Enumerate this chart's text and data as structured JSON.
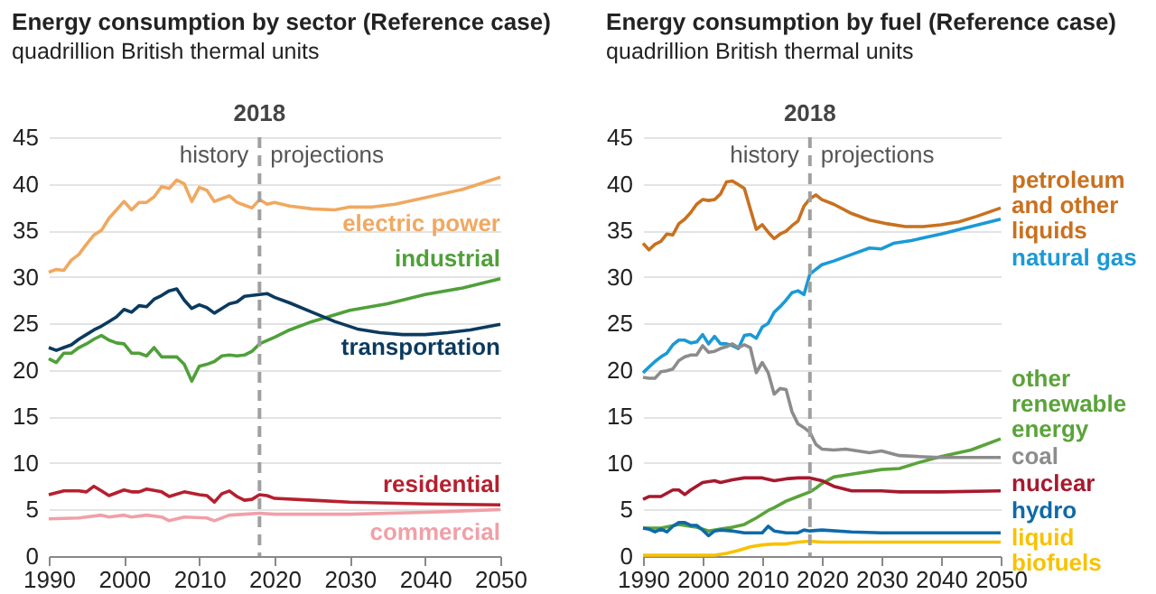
{
  "chart_data": [
    {
      "type": "line",
      "title": "Energy consumption by sector (Reference case)",
      "subtitle": "quadrillion British thermal units",
      "xlim": [
        1990,
        2050
      ],
      "xticks": [
        1990,
        2000,
        2010,
        2020,
        2030,
        2040,
        2050
      ],
      "ylim": [
        0,
        45
      ],
      "yticks": [
        0,
        5,
        10,
        15,
        20,
        25,
        30,
        35,
        40,
        45
      ],
      "grid": "y",
      "ref_lines": [
        {
          "axis": "x",
          "value": 2018,
          "label": "2018",
          "color": "#a0a0a0",
          "line_style": "dashed"
        }
      ],
      "annotations": [
        "history",
        "projections"
      ],
      "series": [
        {
          "name": "electric power",
          "color": "#f0a860",
          "x": [
            1990,
            1991,
            1992,
            1993,
            1994,
            1995,
            1996,
            1997,
            1998,
            1999,
            2000,
            2001,
            2002,
            2003,
            2004,
            2005,
            2006,
            2007,
            2008,
            2009,
            2010,
            2011,
            2012,
            2013,
            2014,
            2015,
            2016,
            2017,
            2018,
            2019,
            2020,
            2022,
            2025,
            2028,
            2030,
            2033,
            2036,
            2040,
            2045,
            2050
          ],
          "values": [
            30.5,
            30.8,
            30.7,
            31.8,
            32.4,
            33.5,
            34.5,
            35,
            36.3,
            37.2,
            38.1,
            37.2,
            38,
            38,
            38.6,
            39.7,
            39.5,
            40.4,
            40,
            38.1,
            39.6,
            39.3,
            38.1,
            38.4,
            38.7,
            38,
            37.7,
            37.4,
            38.3,
            37.8,
            38,
            37.6,
            37.3,
            37.2,
            37.5,
            37.5,
            37.8,
            38.5,
            39.4,
            40.7
          ]
        },
        {
          "name": "industrial",
          "color": "#4fa03a",
          "x": [
            1990,
            1991,
            1992,
            1993,
            1994,
            1995,
            1996,
            1997,
            1998,
            1999,
            2000,
            2001,
            2002,
            2003,
            2004,
            2005,
            2006,
            2007,
            2008,
            2009,
            2010,
            2011,
            2012,
            2013,
            2014,
            2015,
            2016,
            2017,
            2018,
            2020,
            2022,
            2025,
            2030,
            2035,
            2040,
            2045,
            2050
          ],
          "values": [
            21.2,
            20.8,
            21.8,
            21.8,
            22.4,
            22.8,
            23.3,
            23.7,
            23.2,
            22.9,
            22.8,
            21.8,
            21.8,
            21.5,
            22.4,
            21.4,
            21.4,
            21.4,
            20.6,
            18.8,
            20.4,
            20.6,
            20.9,
            21.5,
            21.6,
            21.5,
            21.6,
            22,
            22.8,
            23.5,
            24.3,
            25.2,
            26.4,
            27.1,
            28.1,
            28.8,
            29.8
          ]
        },
        {
          "name": "transportation",
          "color": "#0b3a5e",
          "x": [
            1990,
            1991,
            1992,
            1993,
            1994,
            1995,
            1996,
            1997,
            1998,
            1999,
            2000,
            2001,
            2002,
            2003,
            2004,
            2005,
            2006,
            2007,
            2008,
            2009,
            2010,
            2011,
            2012,
            2013,
            2014,
            2015,
            2016,
            2017,
            2018,
            2019,
            2020,
            2022,
            2025,
            2028,
            2031,
            2034,
            2037,
            2040,
            2043,
            2046,
            2050
          ],
          "values": [
            22.4,
            22.1,
            22.4,
            22.7,
            23.3,
            23.8,
            24.3,
            24.7,
            25.2,
            25.7,
            26.5,
            26.2,
            26.9,
            26.8,
            27.6,
            28,
            28.5,
            28.7,
            27.5,
            26.6,
            27,
            26.7,
            26.1,
            26.6,
            27.1,
            27.3,
            27.9,
            28,
            28.1,
            28.2,
            27.8,
            27.2,
            26.2,
            25.2,
            24.4,
            24,
            23.8,
            23.8,
            24,
            24.3,
            24.9
          ]
        },
        {
          "name": "residential",
          "color": "#b5202e",
          "x": [
            1990,
            1992,
            1994,
            1995,
            1996,
            1997,
            1998,
            2000,
            2001,
            2002,
            2003,
            2005,
            2006,
            2008,
            2010,
            2011,
            2012,
            2013,
            2014,
            2015,
            2016,
            2017,
            2018,
            2019,
            2020,
            2025,
            2030,
            2040,
            2050
          ],
          "values": [
            6.6,
            7,
            7,
            6.9,
            7.5,
            7,
            6.5,
            7.1,
            6.9,
            6.9,
            7.2,
            6.9,
            6.4,
            6.9,
            6.6,
            6.5,
            5.8,
            6.7,
            7,
            6.4,
            6,
            6.1,
            6.6,
            6.5,
            6.2,
            6,
            5.8,
            5.6,
            5.5
          ]
        },
        {
          "name": "commercial",
          "color": "#f0a0a8",
          "x": [
            1990,
            1994,
            1997,
            1998,
            2000,
            2001,
            2003,
            2005,
            2006,
            2008,
            2011,
            2012,
            2014,
            2016,
            2018,
            2020,
            2030,
            2040,
            2050
          ],
          "values": [
            4,
            4.1,
            4.4,
            4.2,
            4.4,
            4.2,
            4.4,
            4.2,
            3.8,
            4.2,
            4.1,
            3.8,
            4.4,
            4.5,
            4.6,
            4.5,
            4.5,
            4.7,
            5
          ]
        }
      ]
    },
    {
      "type": "line",
      "title": "Energy consumption by fuel (Reference case)",
      "subtitle": "quadrillion British thermal units",
      "xlim": [
        1990,
        2050
      ],
      "xticks": [
        1990,
        2000,
        2010,
        2020,
        2030,
        2040,
        2050
      ],
      "ylim": [
        0,
        45
      ],
      "yticks": [
        0,
        5,
        10,
        15,
        20,
        25,
        30,
        35,
        40,
        45
      ],
      "grid": "y",
      "ref_lines": [
        {
          "axis": "x",
          "value": 2018,
          "label": "2018",
          "color": "#a0a0a0",
          "line_style": "dashed"
        }
      ],
      "annotations": [
        "history",
        "projections"
      ],
      "series": [
        {
          "name": "petroleum and other liquids",
          "color": "#c8711f",
          "x": [
            1990,
            1991,
            1992,
            1993,
            1994,
            1995,
            1996,
            1997,
            1998,
            1999,
            2000,
            2001,
            2002,
            2003,
            2004,
            2005,
            2006,
            2007,
            2008,
            2009,
            2010,
            2011,
            2012,
            2013,
            2014,
            2015,
            2016,
            2017,
            2018,
            2019,
            2020,
            2022,
            2025,
            2028,
            2031,
            2034,
            2037,
            2040,
            2043,
            2046,
            2050
          ],
          "values": [
            33.6,
            32.9,
            33.5,
            33.8,
            34.6,
            34.5,
            35.7,
            36.2,
            36.9,
            37.8,
            38.3,
            38.2,
            38.3,
            38.9,
            40.2,
            40.3,
            39.9,
            39.5,
            37.3,
            35.1,
            35.6,
            34.8,
            34.1,
            34.6,
            34.9,
            35.5,
            36,
            37.6,
            38.4,
            38.8,
            38.3,
            37.8,
            36.8,
            36.1,
            35.7,
            35.4,
            35.4,
            35.6,
            35.9,
            36.5,
            37.4
          ]
        },
        {
          "name": "natural gas",
          "color": "#1a9ad6",
          "x": [
            1990,
            1991,
            1992,
            1993,
            1994,
            1995,
            1996,
            1997,
            1998,
            1999,
            2000,
            2001,
            2002,
            2003,
            2004,
            2005,
            2006,
            2007,
            2008,
            2009,
            2010,
            2011,
            2012,
            2013,
            2014,
            2015,
            2016,
            2017,
            2018,
            2019,
            2020,
            2022,
            2025,
            2028,
            2030,
            2032,
            2035,
            2040,
            2045,
            2050
          ],
          "values": [
            19.7,
            20.3,
            20.9,
            21.4,
            21.8,
            22.7,
            23.2,
            23.2,
            22.9,
            23,
            23.8,
            22.8,
            23.6,
            22.8,
            22.8,
            22.6,
            22.3,
            23.7,
            23.8,
            23.4,
            24.6,
            25,
            26.2,
            26.8,
            27.5,
            28.3,
            28.5,
            28.1,
            30.3,
            30.8,
            31.3,
            31.7,
            32.4,
            33.1,
            33,
            33.6,
            33.9,
            34.6,
            35.4,
            36.2
          ]
        },
        {
          "name": "other renewable energy",
          "color": "#5aa33a",
          "x": [
            1990,
            1993,
            1996,
            1999,
            2001,
            2003,
            2005,
            2007,
            2009,
            2011,
            2012,
            2014,
            2016,
            2018,
            2019,
            2020,
            2022,
            2025,
            2030,
            2033,
            2036,
            2040,
            2045,
            2050
          ],
          "values": [
            3,
            3,
            3.4,
            3.1,
            2.7,
            2.9,
            3.1,
            3.4,
            4.1,
            4.9,
            5.2,
            5.9,
            6.4,
            6.9,
            7.3,
            7.8,
            8.5,
            8.8,
            9.3,
            9.4,
            10,
            10.7,
            11.4,
            12.6
          ]
        },
        {
          "name": "coal",
          "color": "#8c8c8c",
          "x": [
            1990,
            1991,
            1992,
            1993,
            1994,
            1995,
            1996,
            1997,
            1998,
            1999,
            2000,
            2001,
            2002,
            2003,
            2004,
            2005,
            2006,
            2007,
            2008,
            2009,
            2010,
            2011,
            2012,
            2013,
            2014,
            2015,
            2016,
            2017,
            2018,
            2019,
            2020,
            2022,
            2024,
            2026,
            2028,
            2030,
            2033,
            2036,
            2040,
            2045,
            2050
          ],
          "values": [
            19.2,
            19.1,
            19.1,
            19.8,
            19.9,
            20.1,
            21,
            21.4,
            21.6,
            21.6,
            22.6,
            21.9,
            22,
            22.3,
            22.5,
            22.8,
            22.4,
            22.7,
            22.4,
            19.7,
            20.8,
            19.7,
            17.4,
            18,
            17.9,
            15.5,
            14.2,
            13.8,
            13.3,
            12,
            11.5,
            11.4,
            11.5,
            11.3,
            11.1,
            11.3,
            10.8,
            10.7,
            10.6,
            10.6,
            10.6
          ]
        },
        {
          "name": "nuclear",
          "color": "#a6192e",
          "x": [
            1990,
            1991,
            1993,
            1995,
            1996,
            1997,
            1998,
            2000,
            2002,
            2003,
            2005,
            2007,
            2010,
            2012,
            2014,
            2016,
            2018,
            2020,
            2022,
            2025,
            2030,
            2033,
            2040,
            2050
          ],
          "values": [
            6.1,
            6.4,
            6.4,
            7.1,
            7.1,
            6.6,
            7.1,
            7.9,
            8.1,
            7.9,
            8.2,
            8.4,
            8.4,
            8.1,
            8.3,
            8.4,
            8.4,
            8.1,
            7.5,
            7,
            7,
            6.9,
            6.9,
            7
          ]
        },
        {
          "name": "hydro",
          "color": "#0e6aa8",
          "x": [
            1990,
            1991,
            1992,
            1993,
            1994,
            1995,
            1996,
            1997,
            1998,
            1999,
            2000,
            2001,
            2002,
            2003,
            2005,
            2007,
            2008,
            2010,
            2011,
            2012,
            2014,
            2016,
            2017,
            2018,
            2020,
            2025,
            2030,
            2040,
            2050
          ],
          "values": [
            3,
            2.9,
            2.6,
            2.9,
            2.6,
            3.2,
            3.6,
            3.6,
            3.3,
            3.3,
            2.8,
            2.2,
            2.7,
            2.8,
            2.7,
            2.5,
            2.5,
            2.5,
            3.2,
            2.7,
            2.5,
            2.5,
            2.8,
            2.7,
            2.8,
            2.6,
            2.5,
            2.5,
            2.5
          ]
        },
        {
          "name": "liquid biofuels",
          "color": "#f7c200",
          "x": [
            1990,
            2000,
            2002,
            2004,
            2006,
            2008,
            2010,
            2012,
            2014,
            2016,
            2018,
            2020,
            2030,
            2040,
            2050
          ],
          "values": [
            0.1,
            0.1,
            0.1,
            0.3,
            0.6,
            1,
            1.2,
            1.3,
            1.3,
            1.5,
            1.6,
            1.5,
            1.5,
            1.5,
            1.5
          ]
        }
      ]
    }
  ]
}
